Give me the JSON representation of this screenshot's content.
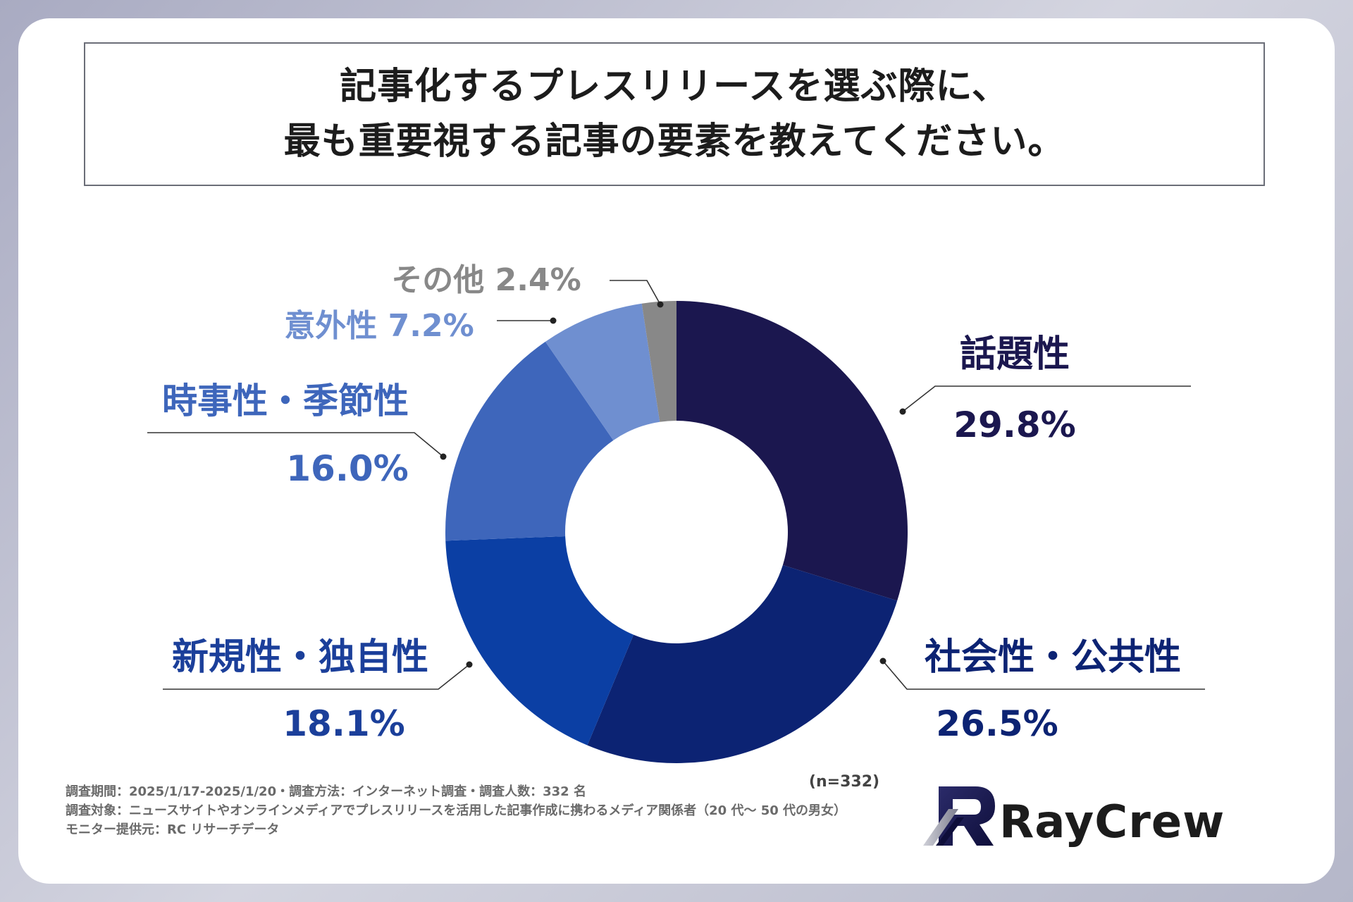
{
  "title": {
    "line1": "記事化するプレスリリースを選ぶ際に、",
    "line2": "最も重要視する記事の要素を教えてください。"
  },
  "chart_data": {
    "type": "pie",
    "variant": "donut",
    "slices": [
      {
        "label": "話題性",
        "value": 29.8,
        "value_text": "29.8%",
        "color": "#1b174f",
        "label_color": "#1b174f"
      },
      {
        "label": "社会性・公共性",
        "value": 26.5,
        "value_text": "26.5%",
        "color": "#0c2373",
        "label_color": "#0c2373"
      },
      {
        "label": "新規性・独自性",
        "value": 18.1,
        "value_text": "18.1%",
        "color": "#0b3fa4",
        "label_color": "#1b3f9a"
      },
      {
        "label": "時事性・季節性",
        "value": 16.0,
        "value_text": "16.0%",
        "color": "#3e66bb",
        "label_color": "#3e66bb"
      },
      {
        "label": "意外性",
        "value": 7.2,
        "value_text": "7.2%",
        "color": "#6f8fd0",
        "label_color": "#6f8fd0"
      },
      {
        "label": "その他",
        "value": 2.4,
        "value_text": "2.4%",
        "color": "#888888",
        "label_color": "#888888"
      }
    ],
    "sample_note": "(n=332)"
  },
  "footer": {
    "line1": "調査期間：2025/1/17-2025/1/20・調査方法：インターネット調査・調査人数：332 名",
    "line2": "調査対象：ニュースサイトやオンラインメディアでプレスリリースを活用した記事作成に携わるメディア関係者（20 代〜 50 代の男女）",
    "line3": "モニター提供元：RC リサーチデータ"
  },
  "logo": {
    "text": "RayCrew"
  }
}
